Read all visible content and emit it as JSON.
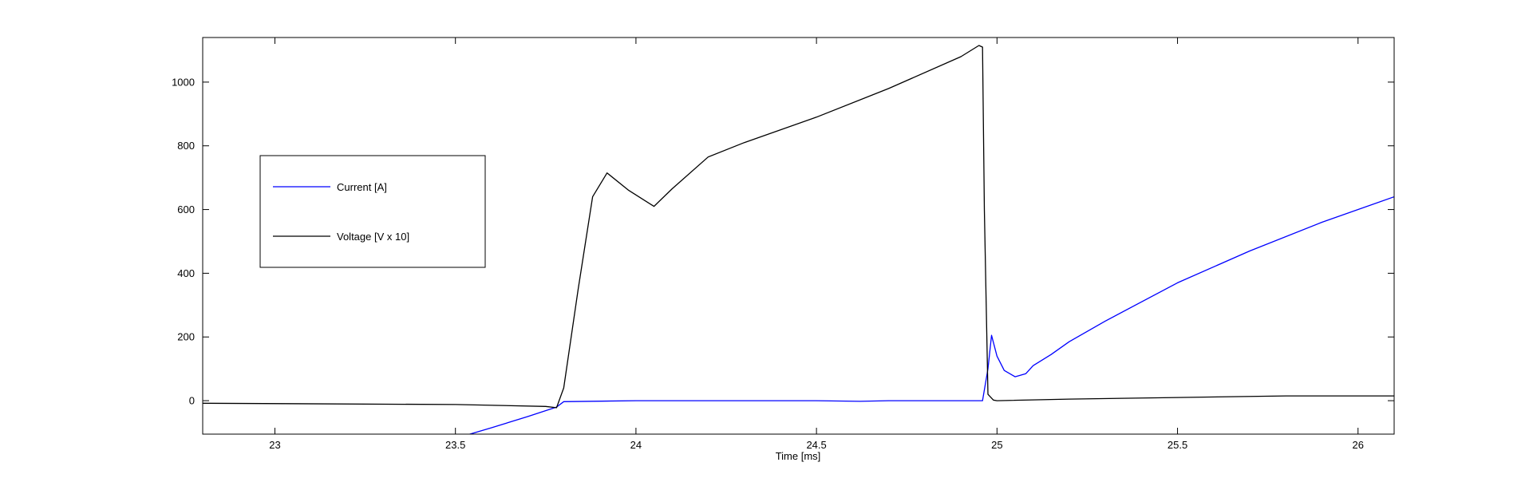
{
  "chart_data": {
    "type": "line",
    "title": "",
    "xlabel": "Time [ms]",
    "ylabel": "",
    "xlim": [
      22.8,
      26.1
    ],
    "ylim": [
      -105,
      1140
    ],
    "xticks": [
      23,
      23.5,
      24,
      24.5,
      25,
      25.5,
      26
    ],
    "yticks": [
      0,
      200,
      400,
      600,
      800,
      1000
    ],
    "grid": false,
    "legend_position": "upper-left",
    "series": [
      {
        "name": "Current [A]",
        "color": "#0000ff",
        "x": [
          23.0,
          23.5,
          23.54,
          23.6,
          23.7,
          23.78,
          23.8,
          24.0,
          24.5,
          24.62,
          24.7,
          24.9,
          24.96,
          24.975,
          24.985,
          25.0,
          25.02,
          25.05,
          25.08,
          25.1,
          25.15,
          25.2,
          25.3,
          25.5,
          25.7,
          25.9,
          26.1
        ],
        "y": [
          -190,
          -120,
          -105,
          -85,
          -50,
          -20,
          -3,
          0,
          0,
          -2,
          0,
          0,
          0,
          100,
          205,
          140,
          95,
          75,
          85,
          110,
          145,
          185,
          250,
          370,
          470,
          560,
          640
        ]
      },
      {
        "name": "Voltage [V x 10]",
        "color": "#000000",
        "x": [
          22.8,
          23.5,
          23.75,
          23.78,
          23.8,
          23.84,
          23.88,
          23.92,
          23.98,
          24.05,
          24.1,
          24.2,
          24.3,
          24.5,
          24.7,
          24.9,
          24.95,
          24.96,
          24.965,
          24.975,
          24.99,
          25.0,
          25.2,
          25.5,
          25.8,
          26.1
        ],
        "y": [
          -8,
          -12,
          -18,
          -22,
          40,
          350,
          640,
          715,
          660,
          610,
          665,
          765,
          810,
          890,
          980,
          1080,
          1115,
          1110,
          600,
          20,
          2,
          0,
          5,
          10,
          15,
          15
        ]
      }
    ]
  }
}
